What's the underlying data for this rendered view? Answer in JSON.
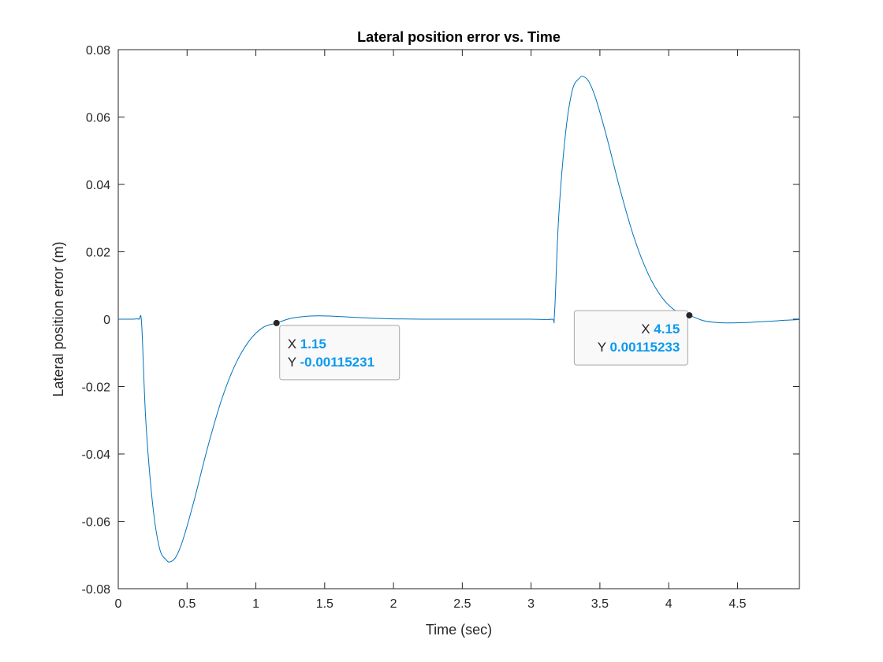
{
  "chart_data": {
    "type": "line",
    "title": "Lateral position error vs. Time",
    "xlabel": "Time (sec)",
    "ylabel": "Lateral position error (m)",
    "xlim": [
      0,
      4.95
    ],
    "ylim": [
      -0.08,
      0.08
    ],
    "xticks": [
      "0",
      "0.5",
      "1",
      "1.5",
      "2",
      "2.5",
      "3",
      "3.5",
      "4",
      "4.5"
    ],
    "xtick_values": [
      0,
      0.5,
      1,
      1.5,
      2,
      2.5,
      3,
      3.5,
      4,
      4.5
    ],
    "yticks": [
      "0.08",
      "0.06",
      "0.04",
      "0.02",
      "0",
      "-0.02",
      "-0.04",
      "-0.06",
      "-0.08"
    ],
    "ytick_values": [
      0.08,
      0.06,
      0.04,
      0.02,
      0,
      -0.02,
      -0.04,
      -0.06,
      -0.08
    ],
    "grid": false,
    "line_color": "#0072bd",
    "series": [
      {
        "x": [
          0,
          0.1,
          0.15,
          0.17,
          0.2,
          0.25,
          0.3,
          0.35,
          0.38,
          0.42,
          0.47,
          0.55,
          0.65,
          0.75,
          0.85,
          0.95,
          1.05,
          1.15,
          1.25,
          1.35,
          1.45,
          1.55,
          1.7,
          1.85,
          2.0,
          2.2,
          2.5,
          2.8,
          3.0,
          3.15,
          3.17,
          3.2,
          3.25,
          3.3,
          3.35,
          3.38,
          3.42,
          3.47,
          3.55,
          3.65,
          3.75,
          3.85,
          3.95,
          4.05,
          4.15,
          4.25,
          4.35,
          4.45,
          4.55,
          4.65,
          4.75,
          4.85,
          4.95
        ],
        "y": [
          0,
          0,
          0,
          -0.0015,
          -0.03,
          -0.055,
          -0.068,
          -0.0715,
          -0.072,
          -0.0705,
          -0.0655,
          -0.054,
          -0.038,
          -0.024,
          -0.0135,
          -0.0065,
          -0.0025,
          -0.00115,
          0.0002,
          0.0008,
          0.001,
          0.0009,
          0.0006,
          0.0003,
          0.0001,
          0,
          0,
          0,
          0,
          0,
          0.0015,
          0.03,
          0.055,
          0.068,
          0.0715,
          0.072,
          0.0705,
          0.0655,
          0.054,
          0.038,
          0.024,
          0.0135,
          0.0065,
          0.0025,
          0.00115,
          -0.0004,
          -0.001,
          -0.0011,
          -0.001,
          -0.0008,
          -0.0006,
          -0.0003,
          -0.0001
        ]
      }
    ],
    "datatips": [
      {
        "x": 1.15,
        "y": -0.00115231,
        "x_label": "X",
        "y_label": "Y",
        "x_text": "1.15",
        "y_text": "-0.00115231"
      },
      {
        "x": 4.15,
        "y": 0.00115233,
        "x_label": "X",
        "y_label": "Y",
        "x_text": "4.15",
        "y_text": "0.00115233"
      }
    ]
  }
}
